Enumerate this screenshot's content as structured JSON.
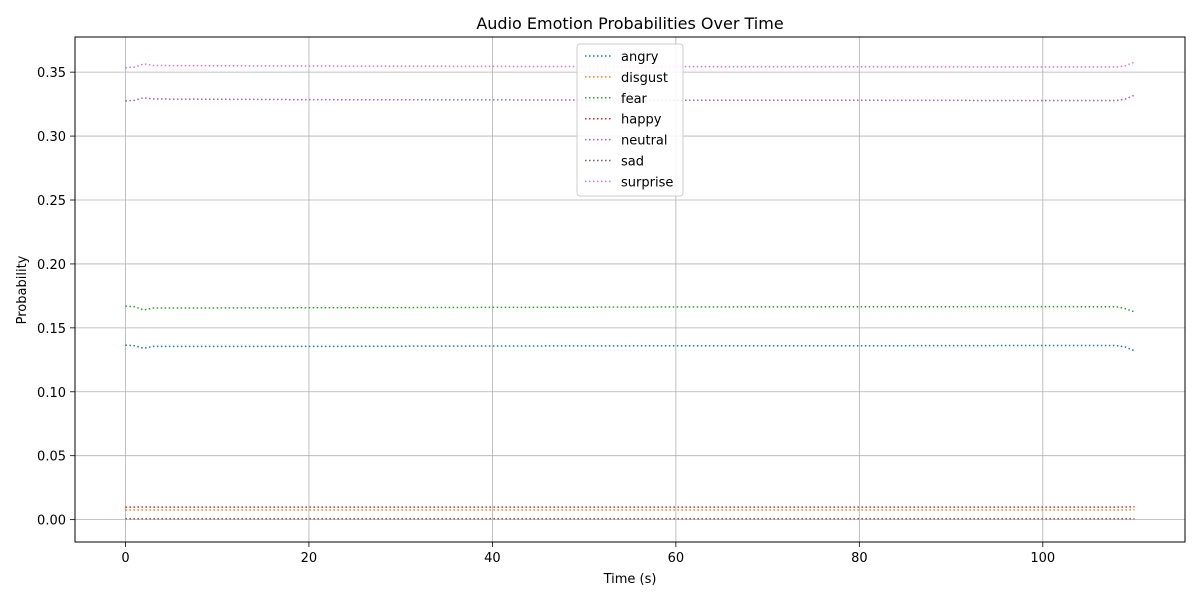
{
  "chart_data": {
    "type": "line",
    "title": "Audio Emotion Probabilities Over Time",
    "xlabel": "Time (s)",
    "ylabel": "Probability",
    "xlim": [
      -5.5,
      115.5
    ],
    "ylim": [
      -0.0175,
      0.3775
    ],
    "x_ticks": [
      0,
      20,
      40,
      60,
      80,
      100
    ],
    "y_ticks": [
      0.0,
      0.05,
      0.1,
      0.15,
      0.2,
      0.25,
      0.3,
      0.35
    ],
    "y_tick_labels": [
      "0.00",
      "0.05",
      "0.10",
      "0.15",
      "0.20",
      "0.25",
      "0.30",
      "0.35"
    ],
    "x_tick_labels": [
      "0",
      "20",
      "40",
      "60",
      "80",
      "100"
    ],
    "grid": true,
    "line_style": "dotted",
    "legend_position": "top-center",
    "x": [
      0,
      1,
      2,
      3,
      20,
      40,
      60,
      80,
      100,
      108,
      109,
      110
    ],
    "series": [
      {
        "name": "angry",
        "color": "#1f77b4",
        "values": [
          0.1365,
          0.136,
          0.134,
          0.1355,
          0.1355,
          0.1358,
          0.136,
          0.136,
          0.1362,
          0.1362,
          0.135,
          0.132
        ]
      },
      {
        "name": "disgust",
        "color": "#ff7f0e",
        "values": [
          0.0075,
          0.0075,
          0.0076,
          0.0075,
          0.0075,
          0.0075,
          0.0075,
          0.0075,
          0.0075,
          0.0075,
          0.0076,
          0.0077
        ]
      },
      {
        "name": "fear",
        "color": "#2ca02c",
        "values": [
          0.167,
          0.1665,
          0.164,
          0.1655,
          0.1657,
          0.166,
          0.1663,
          0.1665,
          0.1666,
          0.1665,
          0.165,
          0.1625
        ]
      },
      {
        "name": "happy",
        "color": "#d62728",
        "values": [
          0.0098,
          0.0098,
          0.0099,
          0.0098,
          0.0098,
          0.0098,
          0.0098,
          0.0098,
          0.0098,
          0.0098,
          0.0099,
          0.01
        ]
      },
      {
        "name": "neutral",
        "color": "#9467bd",
        "values": [
          0.3275,
          0.328,
          0.33,
          0.329,
          0.3285,
          0.3283,
          0.328,
          0.328,
          0.3278,
          0.3278,
          0.329,
          0.332
        ]
      },
      {
        "name": "sad",
        "color": "#8c564b",
        "values": [
          0.0008,
          0.0008,
          0.0008,
          0.0008,
          0.0008,
          0.0008,
          0.0008,
          0.0008,
          0.0008,
          0.0008,
          0.0008,
          0.0008
        ]
      },
      {
        "name": "surprise",
        "color": "#e377c2",
        "values": [
          0.3535,
          0.354,
          0.3565,
          0.3552,
          0.3548,
          0.3545,
          0.3543,
          0.3542,
          0.354,
          0.354,
          0.355,
          0.358
        ]
      }
    ]
  }
}
